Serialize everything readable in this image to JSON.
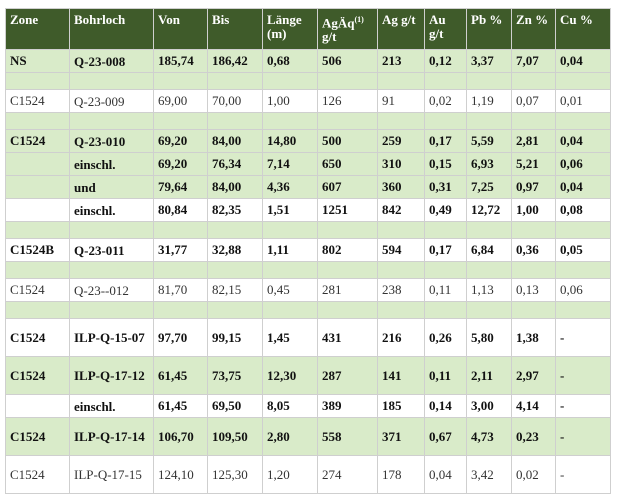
{
  "headers": {
    "zone": "Zone",
    "bohrloch": "Bohrloch",
    "von": "Von",
    "bis": "Bis",
    "laenge": "Länge (m)",
    "agaeq": "AgÄq",
    "agaeq_sup": "(1)",
    "agaeq_unit": "g/t",
    "ag": "Ag g/t",
    "au": "Au g/t",
    "pb": "Pb %",
    "zn": "Zn %",
    "cu": "Cu %"
  },
  "rows": [
    {
      "zone": "NS",
      "bohrloch": "Q-23-008",
      "von": "185,74",
      "bis": "186,42",
      "laenge": "0,68",
      "agaeq": "506",
      "ag": "213",
      "au": "0,12",
      "pb": "3,37",
      "zn": "7,07",
      "cu": "0,04"
    },
    {
      "zone": "C1524",
      "bohrloch": "Q-23-009",
      "von": "69,00",
      "bis": "70,00",
      "laenge": "1,00",
      "agaeq": "126",
      "ag": "91",
      "au": "0,02",
      "pb": "1,19",
      "zn": "0,07",
      "cu": "0,01"
    },
    {
      "zone": "C1524",
      "bohrloch": "Q-23-010",
      "von": "69,20",
      "bis": "84,00",
      "laenge": "14,80",
      "agaeq": "500",
      "ag": "259",
      "au": "0,17",
      "pb": "5,59",
      "zn": "2,81",
      "cu": "0,04"
    },
    {
      "zone": "",
      "bohrloch": "einschl.",
      "von": "69,20",
      "bis": "76,34",
      "laenge": "7,14",
      "agaeq": "650",
      "ag": "310",
      "au": "0,15",
      "pb": "6,93",
      "zn": "5,21",
      "cu": "0,06"
    },
    {
      "zone": "",
      "bohrloch": "und",
      "von": "79,64",
      "bis": "84,00",
      "laenge": "4,36",
      "agaeq": "607",
      "ag": "360",
      "au": "0,31",
      "pb": "7,25",
      "zn": "0,97",
      "cu": "0,04"
    },
    {
      "zone": "",
      "bohrloch": "einschl.",
      "von": "80,84",
      "bis": "82,35",
      "laenge": "1,51",
      "agaeq": "1251",
      "ag": "842",
      "au": "0,49",
      "pb": "12,72",
      "zn": "1,00",
      "cu": "0,08"
    },
    {
      "zone": "C1524B",
      "bohrloch": "Q-23-011",
      "von": "31,77",
      "bis": "32,88",
      "laenge": "1,11",
      "agaeq": "802",
      "ag": "594",
      "au": "0,17",
      "pb": "6,84",
      "zn": "0,36",
      "cu": "0,05"
    },
    {
      "zone": "C1524",
      "bohrloch": "Q-23--012",
      "von": "81,70",
      "bis": "82,15",
      "laenge": "0,45",
      "agaeq": "281",
      "ag": "238",
      "au": "0,11",
      "pb": "1,13",
      "zn": "0,13",
      "cu": "0,06"
    },
    {
      "zone": "C1524",
      "bohrloch": "ILP-Q-15-07",
      "von": "97,70",
      "bis": "99,15",
      "laenge": "1,45",
      "agaeq": "431",
      "ag": "216",
      "au": "0,26",
      "pb": "5,80",
      "zn": "1,38",
      "cu": "-"
    },
    {
      "zone": "C1524",
      "bohrloch": "ILP-Q-17-12",
      "von": "61,45",
      "bis": "73,75",
      "laenge": "12,30",
      "agaeq": "287",
      "ag": "141",
      "au": "0,11",
      "pb": "2,11",
      "zn": "2,97",
      "cu": "-"
    },
    {
      "zone": "",
      "bohrloch": "einschl.",
      "von": "61,45",
      "bis": "69,50",
      "laenge": "8,05",
      "agaeq": "389",
      "ag": "185",
      "au": "0,14",
      "pb": "3,00",
      "zn": "4,14",
      "cu": "-"
    },
    {
      "zone": "C1524",
      "bohrloch": "ILP-Q-17-14",
      "von": "106,70",
      "bis": "109,50",
      "laenge": "2,80",
      "agaeq": "558",
      "ag": "371",
      "au": "0,67",
      "pb": "4,73",
      "zn": "0,23",
      "cu": "-"
    },
    {
      "zone": "C1524",
      "bohrloch": "ILP-Q-17-15",
      "von": "124,10",
      "bis": "125,30",
      "laenge": "1,20",
      "agaeq": "274",
      "ag": "178",
      "au": "0,04",
      "pb": "3,42",
      "zn": "0,02",
      "cu": "-"
    }
  ]
}
